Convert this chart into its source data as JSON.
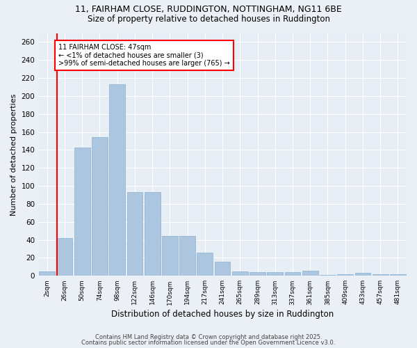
{
  "title_line1": "11, FAIRHAM CLOSE, RUDDINGTON, NOTTINGHAM, NG11 6BE",
  "title_line2": "Size of property relative to detached houses in Ruddington",
  "xlabel": "Distribution of detached houses by size in Ruddington",
  "ylabel": "Number of detached properties",
  "bar_color": "#adc6e0",
  "bar_edge_color": "#8ab0d0",
  "background_color": "#e8eef5",
  "grid_color": "#ffffff",
  "annotation_line1": "11 FAIRHAM CLOSE: 47sqm",
  "annotation_line2": "← <1% of detached houses are smaller (3)",
  "annotation_line3": ">99% of semi-detached houses are larger (765) →",
  "categories": [
    "2sqm",
    "26sqm",
    "50sqm",
    "74sqm",
    "98sqm",
    "122sqm",
    "146sqm",
    "170sqm",
    "194sqm",
    "217sqm",
    "241sqm",
    "265sqm",
    "289sqm",
    "313sqm",
    "337sqm",
    "361sqm",
    "385sqm",
    "409sqm",
    "433sqm",
    "457sqm",
    "481sqm"
  ],
  "values": [
    5,
    42,
    143,
    154,
    213,
    93,
    93,
    44,
    44,
    26,
    16,
    5,
    4,
    4,
    4,
    6,
    1,
    2,
    3,
    2,
    2
  ],
  "ylim": [
    0,
    270
  ],
  "yticks": [
    0,
    20,
    40,
    60,
    80,
    100,
    120,
    140,
    160,
    180,
    200,
    220,
    240,
    260
  ],
  "property_line_xindex": 1,
  "footer_line1": "Contains HM Land Registry data © Crown copyright and database right 2025.",
  "footer_line2": "Contains public sector information licensed under the Open Government Licence v3.0."
}
